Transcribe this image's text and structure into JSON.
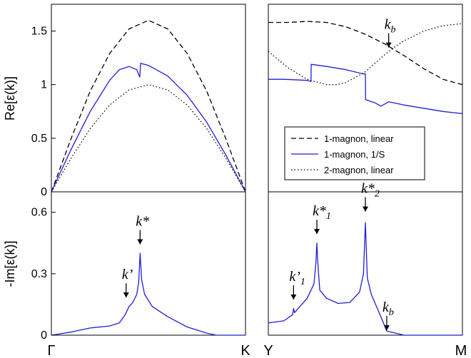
{
  "chart_data": {
    "type": "line",
    "x_tick_labels": [
      "Γ",
      "K",
      "Y",
      "M"
    ],
    "panels": [
      {
        "id": "re-left",
        "ylabel": "Re[ε(k)]",
        "yticks": [
          "0",
          "0.5",
          "1",
          "1.5"
        ],
        "ylim": [
          0,
          1.75
        ],
        "series": [
          {
            "name": "1-magnon, linear",
            "style": "dashed",
            "color": "#000000",
            "x": [
              0,
              0.1,
              0.2,
              0.3,
              0.4,
              0.5,
              0.6,
              0.7,
              0.8,
              0.9,
              1.0
            ],
            "y": [
              0,
              0.49,
              0.94,
              1.29,
              1.52,
              1.6,
              1.52,
              1.29,
              0.94,
              0.49,
              0
            ]
          },
          {
            "name": "1-magnon, 1/S",
            "style": "solid",
            "color": "#1f1fd6",
            "x": [
              0,
              0.1,
              0.2,
              0.3,
              0.35,
              0.4,
              0.44,
              0.455,
              0.46,
              0.5,
              0.6,
              0.7,
              0.8,
              0.9,
              1.0
            ],
            "y": [
              0,
              0.39,
              0.75,
              1.04,
              1.14,
              1.17,
              1.14,
              1.07,
              1.2,
              1.18,
              1.08,
              0.9,
              0.65,
              0.34,
              0
            ]
          },
          {
            "name": "2-magnon, linear",
            "style": "dotted",
            "color": "#000000",
            "x": [
              0,
              0.1,
              0.2,
              0.3,
              0.4,
              0.5,
              0.6,
              0.7,
              0.8,
              0.9,
              1.0
            ],
            "y": [
              0,
              0.31,
              0.59,
              0.81,
              0.95,
              1.0,
              0.95,
              0.81,
              0.59,
              0.31,
              0
            ]
          }
        ]
      },
      {
        "id": "re-right",
        "ylim": [
          0,
          1.75
        ],
        "annotations": [
          {
            "text": "k",
            "sub": "b",
            "x": 0.62,
            "y": 1.32
          }
        ],
        "series": [
          {
            "name": "1-magnon, linear",
            "style": "dashed",
            "color": "#000000",
            "x": [
              0,
              0.1,
              0.2,
              0.3,
              0.4,
              0.5,
              0.6,
              0.7,
              0.8,
              0.9,
              1.0
            ],
            "y": [
              1.58,
              1.58,
              1.59,
              1.58,
              1.54,
              1.47,
              1.38,
              1.27,
              1.15,
              1.05,
              1.0
            ]
          },
          {
            "name": "1-magnon, 1/S",
            "style": "solid",
            "color": "#1f1fd6",
            "x": [
              0,
              0.08,
              0.2,
              0.22,
              0.221,
              0.3,
              0.4,
              0.49,
              0.5,
              0.501,
              0.55,
              0.58,
              0.62,
              0.7,
              0.8,
              0.9,
              1.0
            ],
            "y": [
              1.05,
              1.05,
              1.04,
              1.03,
              1.19,
              1.17,
              1.14,
              1.1,
              1.1,
              0.86,
              0.83,
              0.8,
              0.84,
              0.81,
              0.78,
              0.75,
              0.73
            ]
          },
          {
            "name": "2-magnon, linear",
            "style": "dotted",
            "color": "#000000",
            "x": [
              0,
              0.1,
              0.2,
              0.3,
              0.35,
              0.4,
              0.5,
              0.6,
              0.65,
              0.7,
              0.8,
              0.9,
              1.0
            ],
            "y": [
              1.31,
              1.16,
              1.05,
              1.0,
              1.0,
              1.02,
              1.12,
              1.28,
              1.35,
              1.41,
              1.5,
              1.55,
              1.57
            ]
          }
        ]
      },
      {
        "id": "im-left",
        "ylabel": "-Im[ε(k)]",
        "yticks": [
          "0",
          "0.3",
          "0.6"
        ],
        "ylim": [
          0,
          0.7
        ],
        "annotations": [
          {
            "text": "k*",
            "x": 0.457,
            "y": 0.43
          },
          {
            "text": "k’",
            "x": 0.385,
            "y": 0.17
          }
        ],
        "series": [
          {
            "name": "1-magnon, 1/S",
            "style": "solid",
            "color": "#1f1fd6",
            "x": [
              0,
              0.1,
              0.2,
              0.3,
              0.35,
              0.38,
              0.4,
              0.42,
              0.44,
              0.45,
              0.457,
              0.465,
              0.48,
              0.52,
              0.6,
              0.7,
              0.8,
              0.85,
              0.9,
              1.0
            ],
            "y": [
              0,
              0.015,
              0.035,
              0.045,
              0.06,
              0.1,
              0.14,
              0.16,
              0.2,
              0.26,
              0.4,
              0.27,
              0.2,
              0.14,
              0.09,
              0.04,
              0.01,
              0.0,
              0.0,
              0
            ]
          }
        ]
      },
      {
        "id": "im-right",
        "ylim": [
          0,
          0.7
        ],
        "annotations": [
          {
            "text": "k*",
            "sub": "1",
            "x": 0.25,
            "y": 0.48
          },
          {
            "text": "k*",
            "sub": "2",
            "x": 0.5,
            "y": 0.59
          },
          {
            "text": "k’",
            "sub": "1",
            "x": 0.13,
            "y": 0.16
          },
          {
            "text": "k",
            "sub": "b",
            "x": 0.61,
            "y": 0.01
          }
        ],
        "series": [
          {
            "name": "1-magnon, 1/S",
            "style": "solid",
            "color": "#1f1fd6",
            "x": [
              0,
              0.08,
              0.125,
              0.13,
              0.135,
              0.2,
              0.235,
              0.245,
              0.25,
              0.255,
              0.265,
              0.3,
              0.36,
              0.42,
              0.47,
              0.49,
              0.5,
              0.51,
              0.53,
              0.58,
              0.61,
              0.7,
              0.8,
              1.0
            ],
            "y": [
              0.06,
              0.07,
              0.1,
              0.13,
              0.11,
              0.18,
              0.25,
              0.35,
              0.45,
              0.35,
              0.22,
              0.18,
              0.155,
              0.16,
              0.21,
              0.3,
              0.55,
              0.28,
              0.2,
              0.09,
              0.02,
              0,
              0,
              0
            ]
          }
        ]
      }
    ],
    "legend": {
      "position": "lower-right of upper-right panel",
      "entries": [
        {
          "label": "1-magnon, linear",
          "style": "dashed",
          "color": "#000000"
        },
        {
          "label": "1-magnon, 1/S",
          "style": "solid",
          "color": "#1f1fd6"
        },
        {
          "label": "2-magnon, linear",
          "style": "dotted",
          "color": "#000000"
        }
      ]
    }
  }
}
